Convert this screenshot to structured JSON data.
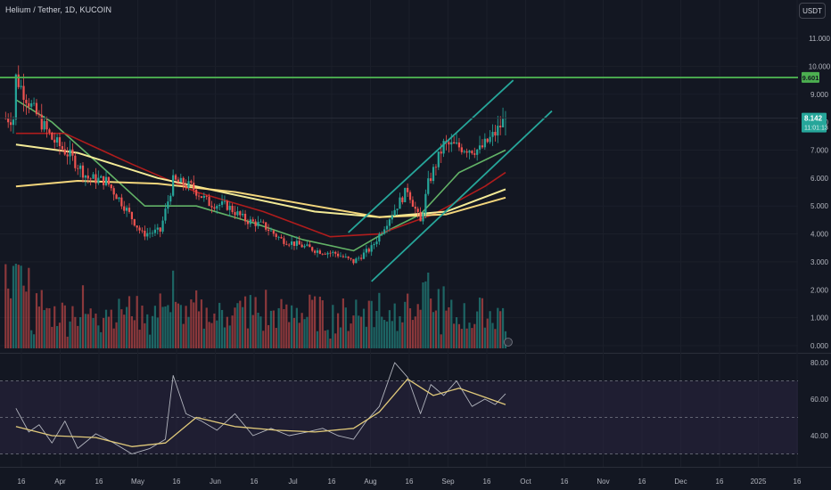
{
  "header": {
    "symbol_title": "Helium / Tether, 1D, KUCOIN",
    "currency_button": "USDT"
  },
  "colors": {
    "background": "#131722",
    "up": "#26a69a",
    "down": "#ef5350",
    "resistance": "#4caf50",
    "channel": "#26a69a",
    "ema_short": "#66bb6a",
    "ema_mid": "#b71c1c",
    "ema_long1": "#fff59d",
    "ema_long2": "#ffe082",
    "rsi": "#b2b5be",
    "rsi_ma": "#e0c97a",
    "rsi_band": "#2a2440"
  },
  "chart_data": [
    {
      "type": "candlestick",
      "symbol": "Helium / Tether",
      "interval": "1D",
      "exchange": "KUCOIN",
      "y_axis": {
        "ticks": [
          "11.000",
          "10.000",
          "9.000",
          "8.000",
          "7.000",
          "6.000",
          "5.000",
          "4.000",
          "3.000",
          "2.000",
          "1.000",
          "0.000"
        ],
        "range": [
          0,
          11.8
        ]
      },
      "x_axis": {
        "ticks": [
          "16",
          "Apr",
          "16",
          "May",
          "16",
          "Jun",
          "16",
          "Jul",
          "16",
          "Aug",
          "16",
          "Sep",
          "16",
          "Oct",
          "16",
          "Nov",
          "16",
          "Dec",
          "16",
          "2025",
          "16"
        ]
      },
      "horizontal_line": {
        "value": 9.601,
        "label": "9.601"
      },
      "last_price": {
        "value": 8.142,
        "label": "8.142",
        "countdown": "11:01:13"
      },
      "ascending_channel": {
        "upper": {
          "from": [
            "Jul 8",
            4.05
          ],
          "to": [
            "Sep 10",
            9.5
          ]
        },
        "lower": {
          "from": [
            "Jul 17",
            2.3
          ],
          "to": [
            "Sep 25",
            8.4
          ]
        }
      },
      "ohlc_anchor_close": [
        [
          "Mar 1",
          9.6
        ],
        [
          "Mar 8",
          8.4
        ],
        [
          "Mar 15",
          7.4
        ],
        [
          "Mar 22",
          6.8
        ],
        [
          "Mar 29",
          6.0
        ],
        [
          "Apr 5",
          5.9
        ],
        [
          "Apr 12",
          5.0
        ],
        [
          "Apr 19",
          4.0
        ],
        [
          "Apr 26",
          4.1
        ],
        [
          "May 1",
          5.9
        ],
        [
          "May 8",
          5.7
        ],
        [
          "May 15",
          5.1
        ],
        [
          "May 22",
          5.0
        ],
        [
          "May 29",
          4.5
        ],
        [
          "Jun 5",
          4.3
        ],
        [
          "Jun 12",
          3.8
        ],
        [
          "Jun 19",
          3.6
        ],
        [
          "Jun 26",
          3.4
        ],
        [
          "Jul 3",
          3.3
        ],
        [
          "Jul 10",
          3.0
        ],
        [
          "Jul 17",
          3.5
        ],
        [
          "Jul 24",
          4.6
        ],
        [
          "Jul 31",
          5.6
        ],
        [
          "Aug 5",
          4.4
        ],
        [
          "Aug 8",
          5.8
        ],
        [
          "Aug 14",
          7.2
        ],
        [
          "Aug 21",
          7.1
        ],
        [
          "Aug 28",
          7.0
        ],
        [
          "Sep 3",
          7.6
        ],
        [
          "Sep 7",
          8.142
        ]
      ],
      "moving_averages": [
        {
          "color": "#66bb6a",
          "points": [
            [
              "Mar 1",
              8.8
            ],
            [
              "Mar 15",
              8.0
            ],
            [
              "Apr 1",
              6.6
            ],
            [
              "Apr 20",
              5.0
            ],
            [
              "May 10",
              5.0
            ],
            [
              "Jun 1",
              4.4
            ],
            [
              "Jun 20",
              3.8
            ],
            [
              "Jul 10",
              3.4
            ],
            [
              "Jul 25",
              4.2
            ],
            [
              "Aug 5",
              4.7
            ],
            [
              "Aug 20",
              6.2
            ],
            [
              "Sep 7",
              7.0
            ]
          ]
        },
        {
          "color": "#b71c1c",
          "points": [
            [
              "Mar 1",
              7.6
            ],
            [
              "Mar 20",
              7.6
            ],
            [
              "Apr 15",
              6.5
            ],
            [
              "May 10",
              5.5
            ],
            [
              "Jun 5",
              4.8
            ],
            [
              "Jul 1",
              3.9
            ],
            [
              "Jul 20",
              4.0
            ],
            [
              "Aug 10",
              4.7
            ],
            [
              "Aug 30",
              5.7
            ],
            [
              "Sep 7",
              6.2
            ]
          ]
        },
        {
          "color": "#fff59d",
          "points": [
            [
              "Mar 1",
              7.2
            ],
            [
              "Mar 25",
              6.9
            ],
            [
              "Apr 25",
              6.0
            ],
            [
              "May 25",
              5.4
            ],
            [
              "Jun 25",
              4.8
            ],
            [
              "Jul 20",
              4.6
            ],
            [
              "Aug 15",
              4.8
            ],
            [
              "Sep 7",
              5.6
            ]
          ]
        },
        {
          "color": "#ffe082",
          "points": [
            [
              "Mar 1",
              5.7
            ],
            [
              "Mar 25",
              5.9
            ],
            [
              "Apr 25",
              5.8
            ],
            [
              "May 25",
              5.5
            ],
            [
              "Jun 25",
              5.0
            ],
            [
              "Jul 20",
              4.6
            ],
            [
              "Aug 15",
              4.7
            ],
            [
              "Sep 7",
              5.3
            ]
          ]
        }
      ]
    },
    {
      "type": "bar",
      "name": "Volume",
      "y_axis": {
        "ticks": [
          "2.000",
          "1.000",
          "0.000"
        ]
      }
    },
    {
      "type": "line",
      "name": "RSI",
      "y_axis": {
        "ticks": [
          "80.00",
          "60.00",
          "40.00"
        ],
        "range": [
          25,
          85
        ]
      },
      "band": [
        30,
        70
      ],
      "midline": 50,
      "rsi_points": [
        [
          "Mar 1",
          55
        ],
        [
          "Mar 6",
          42
        ],
        [
          "Mar 10",
          46
        ],
        [
          "Mar 15",
          36
        ],
        [
          "Mar 20",
          48
        ],
        [
          "Mar 25",
          33
        ],
        [
          "Apr 1",
          41
        ],
        [
          "Apr 8",
          36
        ],
        [
          "Apr 15",
          30
        ],
        [
          "Apr 22",
          33
        ],
        [
          "Apr 28",
          38
        ],
        [
          "May 1",
          73
        ],
        [
          "May 6",
          52
        ],
        [
          "May 12",
          48
        ],
        [
          "May 18",
          43
        ],
        [
          "May 25",
          52
        ],
        [
          "Jun 1",
          40
        ],
        [
          "Jun 8",
          44
        ],
        [
          "Jun 15",
          40
        ],
        [
          "Jun 22",
          42
        ],
        [
          "Jun 28",
          44
        ],
        [
          "Jul 4",
          40
        ],
        [
          "Jul 10",
          38
        ],
        [
          "Jul 15",
          48
        ],
        [
          "Jul 20",
          56
        ],
        [
          "Jul 26",
          80
        ],
        [
          "Jul 31",
          72
        ],
        [
          "Aug 5",
          52
        ],
        [
          "Aug 9",
          68
        ],
        [
          "Aug 14",
          62
        ],
        [
          "Aug 19",
          70
        ],
        [
          "Aug 25",
          56
        ],
        [
          "Aug 30",
          60
        ],
        [
          "Sep 3",
          57
        ],
        [
          "Sep 7",
          63
        ]
      ],
      "rsi_ma_points": [
        [
          "Mar 1",
          45
        ],
        [
          "Mar 15",
          40
        ],
        [
          "Apr 1",
          39
        ],
        [
          "Apr 15",
          34
        ],
        [
          "Apr 28",
          36
        ],
        [
          "May 10",
          50
        ],
        [
          "May 25",
          45
        ],
        [
          "Jun 10",
          43
        ],
        [
          "Jun 25",
          42
        ],
        [
          "Jul 10",
          44
        ],
        [
          "Jul 20",
          53
        ],
        [
          "Jul 31",
          71
        ],
        [
          "Aug 10",
          62
        ],
        [
          "Aug 20",
          66
        ],
        [
          "Aug 30",
          61
        ],
        [
          "Sep 7",
          57
        ]
      ]
    }
  ]
}
